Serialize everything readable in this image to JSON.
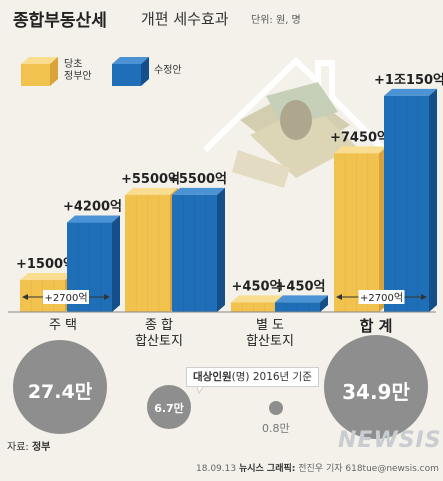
{
  "title": {
    "main": "종합부동산세",
    "rest": "개편 세수효과",
    "unit": "단위: 원, 명"
  },
  "legend": {
    "govt": "당초\n정부안",
    "revised": "수정안"
  },
  "colors": {
    "gold": "#f2c24f",
    "gold_dark": "#d9a23a",
    "gold_light": "#f9dd90",
    "blue": "#1f6fb8",
    "blue_dark": "#144f8a",
    "blue_light": "#4c93d6",
    "circle": "#8e8e8e",
    "axis": "#888888"
  },
  "chart_data": {
    "type": "bar",
    "unit": "억",
    "categories": [
      "주 택",
      "종 합\n합산토지",
      "별 도\n합산토지",
      "합 계"
    ],
    "series": [
      {
        "name": "당초 정부안",
        "values": [
          1500,
          5500,
          450,
          7450
        ]
      },
      {
        "name": "수정안",
        "values": [
          4200,
          5500,
          450,
          10150
        ]
      }
    ],
    "data_labels": {
      "govt": [
        "+1500억",
        "+5500억",
        "+450억",
        "+7450억"
      ],
      "revised": [
        "+4200억",
        "+5500억",
        "+450억",
        "+1조150억"
      ]
    },
    "diff_labels": [
      {
        "category": 0,
        "text": "+2700억"
      },
      {
        "category": 3,
        "text": "+2700억"
      }
    ],
    "ylim": [
      0,
      10800
    ]
  },
  "circles": {
    "values": [
      "27.4만",
      "6.7만",
      "0.8만",
      "34.9만"
    ],
    "note": {
      "bold": "대상인원",
      "rest": "(명) 2016년 기준"
    }
  },
  "source": {
    "label": "자료:",
    "value": "정부"
  },
  "credit": {
    "date": "18.09.13",
    "org": "뉴시스 그래픽:",
    "author": "전진우 기자 618tue@newsis.com"
  },
  "watermark": "NEWSIS"
}
